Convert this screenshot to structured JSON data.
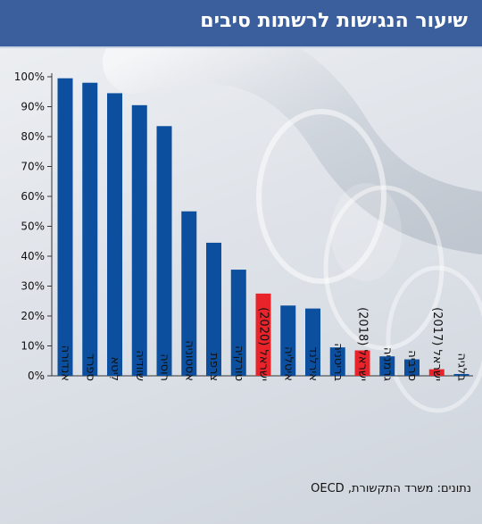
{
  "title": "שיעור הנגישות לרשתות סיבים",
  "source": "נתונים: משרד התקשורת, OECD",
  "colors": {
    "bar": "#0b4f9e",
    "highlight": "#e8232a",
    "header": "#3a5f9c"
  },
  "chart_data": {
    "type": "bar",
    "title": "שיעור הנגישות לרשתות סיבים",
    "xlabel": "",
    "ylabel": "",
    "ylim": [
      0,
      100
    ],
    "yticks": [
      0,
      10,
      20,
      30,
      40,
      50,
      60,
      70,
      80,
      90,
      100
    ],
    "ytick_format": "{v}%",
    "grid": false,
    "legend": "none",
    "categories": [
      "אנדורה",
      "ספרד",
      "לִיטא",
      "שוודיה",
      "רוסיה",
      "אסטוניה",
      "צרפת",
      "טורקיה",
      "ישראל (2020)",
      "איטליה",
      "אירלנד",
      "בריטניה",
      "ישראל (2018)",
      "גרמניה",
      "סרביה",
      "ישראל (2017)",
      "בלגיה"
    ],
    "values": [
      99.5,
      98,
      94.5,
      90.5,
      83.5,
      55,
      44.5,
      35.5,
      27.5,
      23.5,
      22.5,
      9.5,
      8.5,
      6.5,
      5.5,
      2.2,
      0.6
    ],
    "highlighted": [
      false,
      false,
      false,
      false,
      false,
      false,
      false,
      false,
      true,
      false,
      false,
      false,
      true,
      false,
      false,
      true,
      false
    ]
  }
}
